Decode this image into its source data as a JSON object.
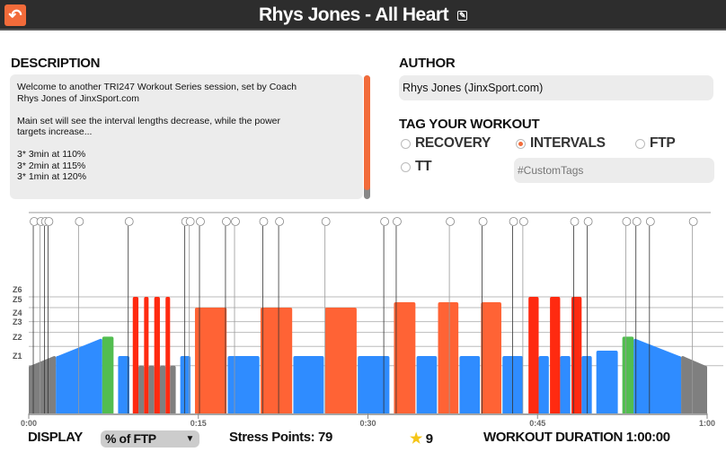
{
  "header": {
    "title": "Rhys Jones - All Heart",
    "back_icon": "back-arrow-icon",
    "edit_icon": "edit-icon"
  },
  "description": {
    "label": "DESCRIPTION",
    "text": "Welcome to another TRI247 Workout Series session, set by Coach\nRhys Jones of JinxSport.com\n\nMain set will see the interval lengths decrease, while the power\ntargets increase...\n\n3* 3min at 110%\n3* 2min at 115%\n3* 1min at 120%"
  },
  "author": {
    "label": "AUTHOR",
    "value": "Rhys Jones (JinxSport.com)"
  },
  "tags": {
    "label": "TAG YOUR WORKOUT",
    "options": [
      {
        "label": "RECOVERY",
        "selected": false
      },
      {
        "label": "INTERVALS",
        "selected": true
      },
      {
        "label": "FTP",
        "selected": false
      },
      {
        "label": "TT",
        "selected": false
      }
    ],
    "custom_placeholder": "#CustomTags"
  },
  "colors": {
    "accent": "#f26b3a",
    "z1": "#7f7f7f",
    "z2": "#2f8cff",
    "z3": "#52bd50",
    "z5": "#ff6335",
    "z6": "#ff2a10"
  },
  "chart_data": {
    "type": "area",
    "xlabel": "",
    "ylabel": "",
    "x_unit": "minutes",
    "xlim": [
      0,
      60
    ],
    "x_ticks": [
      "0:00",
      "0:15",
      "0:30",
      "0:45",
      "1:00"
    ],
    "zone_labels": [
      "Z6",
      "Z5",
      "Z4",
      "Z3",
      "Z2",
      "Z1"
    ],
    "zone_lines_pct_ftp": [
      120,
      110,
      97,
      87,
      74,
      56
    ],
    "segments": [
      {
        "start": 0,
        "end": 2.4,
        "from": 56,
        "to": 65,
        "zone": "z1"
      },
      {
        "start": 2.4,
        "end": 6.5,
        "from": 65,
        "to": 81,
        "zone": "z2"
      },
      {
        "start": 6.5,
        "end": 7.5,
        "from": 83,
        "to": 83,
        "zone": "z3"
      },
      {
        "start": 7.9,
        "end": 8.9,
        "from": 65,
        "to": 65,
        "zone": "z2"
      },
      {
        "start": 9.2,
        "end": 9.7,
        "from": 120,
        "to": 120,
        "zone": "z6"
      },
      {
        "start": 9.7,
        "end": 10.2,
        "from": 56,
        "to": 56,
        "zone": "z1"
      },
      {
        "start": 10.2,
        "end": 10.6,
        "from": 120,
        "to": 120,
        "zone": "z6"
      },
      {
        "start": 10.6,
        "end": 11.1,
        "from": 56,
        "to": 56,
        "zone": "z1"
      },
      {
        "start": 11.1,
        "end": 11.6,
        "from": 120,
        "to": 120,
        "zone": "z6"
      },
      {
        "start": 11.6,
        "end": 12.1,
        "from": 56,
        "to": 56,
        "zone": "z1"
      },
      {
        "start": 12.1,
        "end": 12.5,
        "from": 120,
        "to": 120,
        "zone": "z6"
      },
      {
        "start": 12.5,
        "end": 13.0,
        "from": 56,
        "to": 56,
        "zone": "z1"
      },
      {
        "start": 13.4,
        "end": 14.3,
        "from": 65,
        "to": 65,
        "zone": "z2"
      },
      {
        "start": 14.7,
        "end": 17.5,
        "from": 110,
        "to": 110,
        "zone": "z5"
      },
      {
        "start": 17.6,
        "end": 20.4,
        "from": 65,
        "to": 65,
        "zone": "z2"
      },
      {
        "start": 20.5,
        "end": 23.3,
        "from": 110,
        "to": 110,
        "zone": "z5"
      },
      {
        "start": 23.4,
        "end": 26.1,
        "from": 65,
        "to": 65,
        "zone": "z2"
      },
      {
        "start": 26.2,
        "end": 29.0,
        "from": 110,
        "to": 110,
        "zone": "z5"
      },
      {
        "start": 29.1,
        "end": 31.9,
        "from": 65,
        "to": 65,
        "zone": "z2"
      },
      {
        "start": 32.3,
        "end": 34.2,
        "from": 115,
        "to": 115,
        "zone": "z5"
      },
      {
        "start": 34.3,
        "end": 36.1,
        "from": 65,
        "to": 65,
        "zone": "z2"
      },
      {
        "start": 36.2,
        "end": 38.0,
        "from": 115,
        "to": 115,
        "zone": "z5"
      },
      {
        "start": 38.1,
        "end": 39.9,
        "from": 65,
        "to": 65,
        "zone": "z2"
      },
      {
        "start": 40.0,
        "end": 41.8,
        "from": 115,
        "to": 115,
        "zone": "z5"
      },
      {
        "start": 41.9,
        "end": 43.7,
        "from": 65,
        "to": 65,
        "zone": "z2"
      },
      {
        "start": 44.2,
        "end": 45.1,
        "from": 120,
        "to": 120,
        "zone": "z6"
      },
      {
        "start": 45.1,
        "end": 46.0,
        "from": 65,
        "to": 65,
        "zone": "z2"
      },
      {
        "start": 46.1,
        "end": 47.0,
        "from": 120,
        "to": 120,
        "zone": "z6"
      },
      {
        "start": 47.0,
        "end": 47.9,
        "from": 65,
        "to": 65,
        "zone": "z2"
      },
      {
        "start": 48.0,
        "end": 48.9,
        "from": 120,
        "to": 120,
        "zone": "z6"
      },
      {
        "start": 48.9,
        "end": 49.8,
        "from": 65,
        "to": 65,
        "zone": "z2"
      },
      {
        "start": 50.2,
        "end": 52.1,
        "from": 70,
        "to": 70,
        "zone": "z2"
      },
      {
        "start": 52.5,
        "end": 53.5,
        "from": 83,
        "to": 83,
        "zone": "z3"
      },
      {
        "start": 53.5,
        "end": 57.7,
        "from": 81,
        "to": 65,
        "zone": "z2"
      },
      {
        "start": 57.7,
        "end": 60,
        "from": 65,
        "to": 56,
        "zone": "z1"
      }
    ],
    "text_events_min": [
      0.4,
      1.0,
      1.4,
      1.7,
      4.4,
      8.8,
      13.8,
      14.2,
      15.1,
      17.4,
      18.2,
      20.7,
      22.1,
      26.2,
      31.4,
      32.5,
      37.2,
      40.1,
      42.8,
      43.7,
      48.2,
      49.4,
      52.8,
      53.7,
      54.9,
      58.7
    ]
  },
  "footer": {
    "display_label": "DISPLAY",
    "display_value": "% of FTP",
    "stress_label": "Stress Points: 79",
    "rating": "9",
    "duration_label": "WORKOUT DURATION 1:00:00"
  }
}
